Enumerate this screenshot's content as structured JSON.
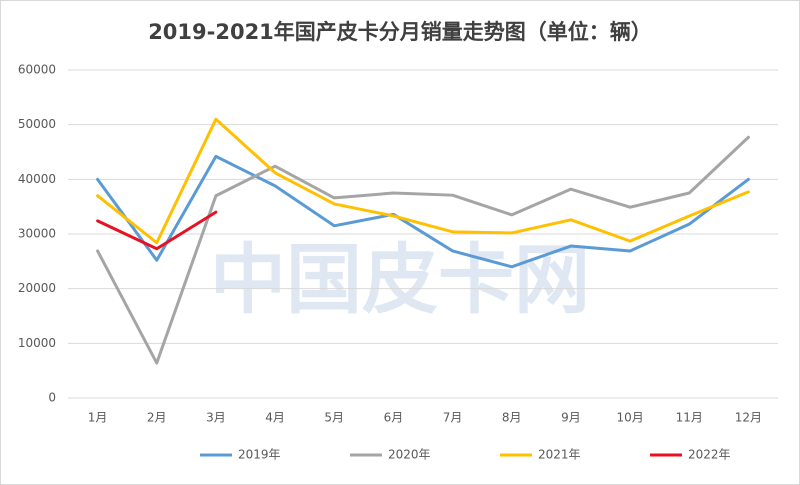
{
  "chart_data": {
    "type": "line",
    "title": "2019-2021年国产皮卡分月销量走势图（单位：辆）",
    "watermark": "中国皮卡网",
    "categories": [
      "1月",
      "2月",
      "3月",
      "4月",
      "5月",
      "6月",
      "7月",
      "8月",
      "9月",
      "10月",
      "11月",
      "12月"
    ],
    "series": [
      {
        "name": "2019年",
        "color": "#5b9bd5",
        "values": [
          40000,
          25200,
          44200,
          38800,
          31500,
          33600,
          26900,
          24000,
          27800,
          26900,
          31800,
          40000
        ]
      },
      {
        "name": "2020年",
        "color": "#a5a5a5",
        "values": [
          26900,
          6400,
          37000,
          42400,
          36600,
          37500,
          37100,
          33500,
          38200,
          34900,
          37500,
          47700
        ]
      },
      {
        "name": "2021年",
        "color": "#ffc000",
        "values": [
          37000,
          28400,
          51000,
          41200,
          35500,
          33300,
          30400,
          30200,
          32600,
          28700,
          33300,
          37700
        ]
      },
      {
        "name": "2022年",
        "color": "#e81123",
        "values": [
          32400,
          27300,
          34000,
          null,
          null,
          null,
          null,
          null,
          null,
          null,
          null,
          null
        ]
      }
    ],
    "ylim": [
      0,
      60000
    ],
    "yticks": [
      0,
      10000,
      20000,
      30000,
      40000,
      50000,
      60000
    ],
    "grid": true,
    "legend": "bottom"
  }
}
